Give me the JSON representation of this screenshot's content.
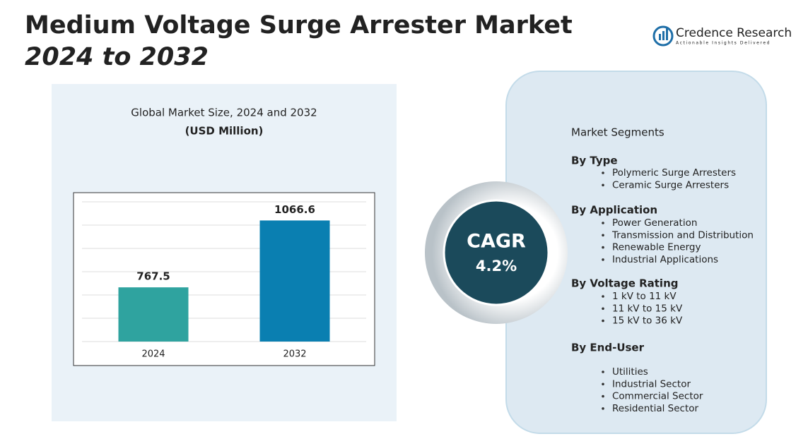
{
  "header": {
    "title": "Medium Voltage Surge Arrester Market",
    "subtitle": "2024 to 2032"
  },
  "logo": {
    "name": "Credence Research",
    "tagline": "Actionable Insights Delivered"
  },
  "chart_data": {
    "type": "bar",
    "title": "Global Market Size, 2024 and 2032",
    "subtitle": "(USD Million)",
    "categories": [
      "2024",
      "2032"
    ],
    "values": [
      767.5,
      1066.6
    ],
    "colors": [
      "#2fa39f",
      "#0a7fb1"
    ],
    "ylim": [
      525,
      1150
    ]
  },
  "cagr": {
    "label": "CAGR",
    "value": "4.2%"
  },
  "segments": {
    "title": "Market Segments",
    "groups": [
      {
        "title": "By Type",
        "items": [
          "Polymeric Surge Arresters",
          "Ceramic Surge Arresters"
        ]
      },
      {
        "title": "By Application",
        "items": [
          "Power Generation",
          "Transmission and Distribution",
          "Renewable Energy",
          "Industrial Applications"
        ]
      },
      {
        "title": "By Voltage Rating",
        "items": [
          "1 kV to 11 kV",
          "11 kV to 15 kV",
          "15 kV to 36 kV"
        ]
      },
      {
        "title": "By End-User",
        "items": [
          "Utilities",
          "Industrial Sector",
          "Commercial Sector",
          "Residential Sector"
        ]
      }
    ]
  }
}
